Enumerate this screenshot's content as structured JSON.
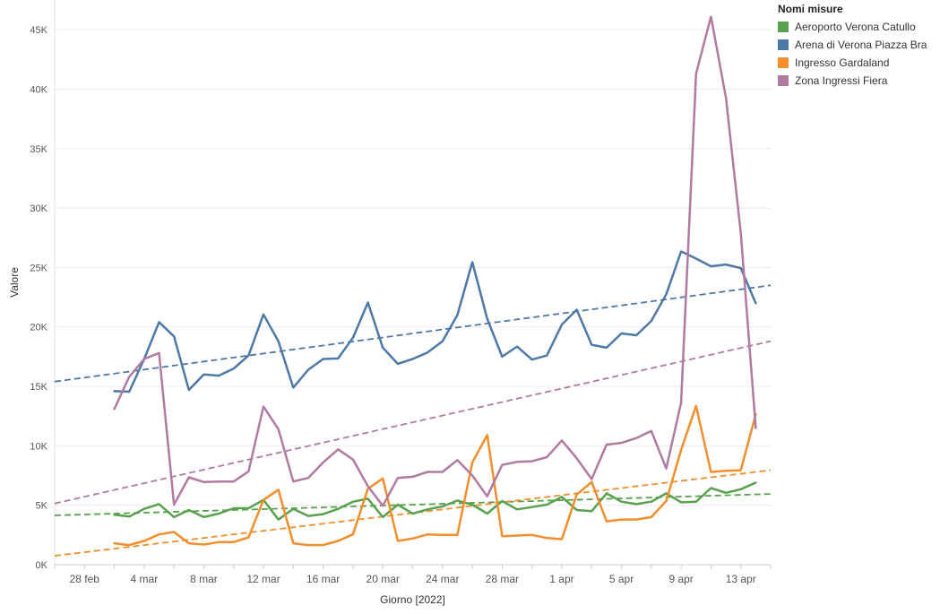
{
  "chart_data": {
    "type": "line",
    "title": "",
    "xlabel": "Giorno [2022]",
    "ylabel": "Valore",
    "ylim": [
      0,
      47500
    ],
    "y_ticks": [
      0,
      5000,
      10000,
      15000,
      20000,
      25000,
      30000,
      35000,
      40000,
      45000
    ],
    "y_tick_labels": [
      "0K",
      "5K",
      "10K",
      "15K",
      "20K",
      "25K",
      "30K",
      "35K",
      "40K",
      "45K"
    ],
    "x_range": [
      "2022-02-26",
      "2022-04-15"
    ],
    "x_ticks": [
      "2022-02-28",
      "2022-03-04",
      "2022-03-08",
      "2022-03-12",
      "2022-03-16",
      "2022-03-20",
      "2022-03-24",
      "2022-03-28",
      "2022-04-01",
      "2022-04-05",
      "2022-04-09",
      "2022-04-13"
    ],
    "x_tick_labels": [
      "28 feb",
      "4 mar",
      "8 mar",
      "12 mar",
      "16 mar",
      "20 mar",
      "24 mar",
      "28 mar",
      "1 apr",
      "5 apr",
      "9 apr",
      "13 apr"
    ],
    "grid": true,
    "legend_title": "Nomi misure",
    "legend_position": "top-right",
    "x_start": "2022-03-02",
    "series": [
      {
        "name": "Aeroporto Verona Catullo",
        "color": "#59a14f",
        "values": [
          4200,
          4050,
          4700,
          5100,
          4000,
          4600,
          4000,
          4300,
          4750,
          4750,
          5450,
          3800,
          4700,
          4100,
          4250,
          4700,
          5300,
          5550,
          4000,
          5050,
          4300,
          4650,
          4900,
          5400,
          5050,
          4300,
          5350,
          4650,
          4850,
          5050,
          5700,
          4600,
          4500,
          6000,
          5300,
          5100,
          5300,
          6000,
          5250,
          5300,
          6450,
          6050,
          6350,
          6900
        ],
        "trend": [
          4150,
          5950
        ]
      },
      {
        "name": "Arena di Verona Piazza Bra",
        "color": "#4e79a7",
        "values": [
          14600,
          14550,
          17300,
          20400,
          19200,
          14700,
          16000,
          15900,
          16500,
          17600,
          21050,
          18800,
          14900,
          16400,
          17300,
          17350,
          19100,
          22050,
          18250,
          16900,
          17300,
          17850,
          18800,
          21000,
          25450,
          20700,
          17500,
          18350,
          17250,
          17600,
          20200,
          21450,
          18500,
          18250,
          19450,
          19300,
          20500,
          22750,
          26350,
          25750,
          25100,
          25250,
          24950,
          22000
        ],
        "trend": [
          15400,
          23500
        ]
      },
      {
        "name": "Ingresso Gardaland",
        "color": "#f28e2b",
        "values": [
          1800,
          1650,
          2000,
          2550,
          2750,
          1800,
          1700,
          1900,
          1900,
          2300,
          5450,
          6300,
          1800,
          1650,
          1650,
          2000,
          2550,
          6400,
          7250,
          2000,
          2200,
          2550,
          2500,
          2500,
          8600,
          10900,
          2400,
          2450,
          2500,
          2250,
          2150,
          5900,
          6950,
          3650,
          3800,
          3800,
          4000,
          5350,
          9650,
          13350,
          7800,
          7900,
          7950,
          12650
        ],
        "trend": [
          750,
          7950
        ]
      },
      {
        "name": "Zona Ingressi Fiera",
        "color": "#b07aa1",
        "values": [
          13100,
          15800,
          17300,
          17800,
          5050,
          7350,
          6950,
          7000,
          7000,
          7850,
          13300,
          11400,
          7000,
          7300,
          8600,
          9700,
          8850,
          6600,
          4950,
          7300,
          7400,
          7800,
          7800,
          8800,
          7500,
          5750,
          8400,
          8650,
          8700,
          9050,
          10450,
          8950,
          7200,
          10100,
          10250,
          10650,
          11250,
          8100,
          13650,
          41300,
          46100,
          39300,
          27900,
          11500
        ],
        "trend": [
          5150,
          18800
        ]
      }
    ]
  }
}
